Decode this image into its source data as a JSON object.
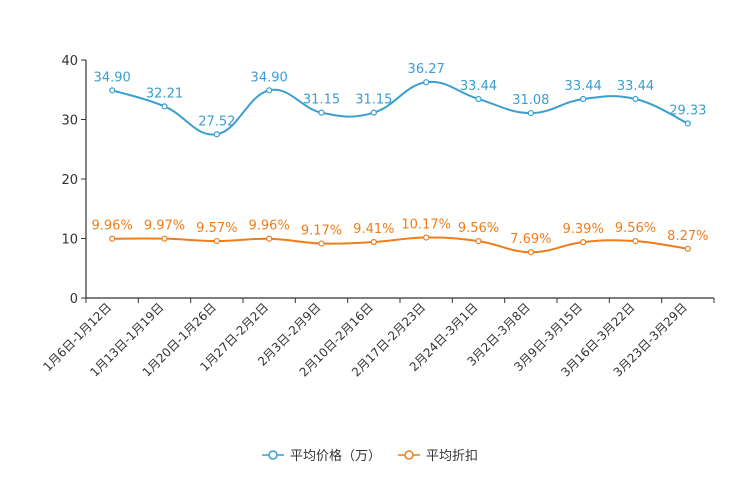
{
  "chart_data": {
    "type": "line",
    "title": "",
    "xlabel": "",
    "ylabel": "",
    "ylim": [
      0,
      40
    ],
    "yticks": [
      0,
      10,
      20,
      30,
      40
    ],
    "categories": [
      "1月6日-1月12日",
      "1月13日-1月19日",
      "1月20日-1月26日",
      "1月27日-2月2日",
      "2月3日-2月9日",
      "2月10日-2月16日",
      "2月17日-2月23日",
      "2月24日-3月1日",
      "3月2日-3月8日",
      "3月9日-3月15日",
      "3月16日-3月22日",
      "3月23日-3月29日"
    ],
    "series": [
      {
        "name": "平均价格（万）",
        "color": "#3a9fd0",
        "values": [
          34.9,
          32.21,
          27.52,
          34.9,
          31.15,
          31.15,
          36.27,
          33.44,
          31.08,
          33.44,
          33.44,
          29.33
        ],
        "labels": [
          "34.90",
          "32.21",
          "27.52",
          "34.90",
          "31.15",
          "31.15",
          "36.27",
          "33.44",
          "31.08",
          "33.44",
          "33.44",
          "29.33"
        ]
      },
      {
        "name": "平均折扣",
        "color": "#f07d1a",
        "values": [
          9.96,
          9.97,
          9.57,
          9.96,
          9.17,
          9.41,
          10.17,
          9.56,
          7.69,
          9.39,
          9.56,
          8.27
        ],
        "labels": [
          "9.96%",
          "9.97%",
          "9.57%",
          "9.96%",
          "9.17%",
          "9.41%",
          "10.17%",
          "9.56%",
          "7.69%",
          "9.39%",
          "9.56%",
          "8.27%"
        ]
      }
    ],
    "legend_position": "bottom-center",
    "grid": false
  }
}
